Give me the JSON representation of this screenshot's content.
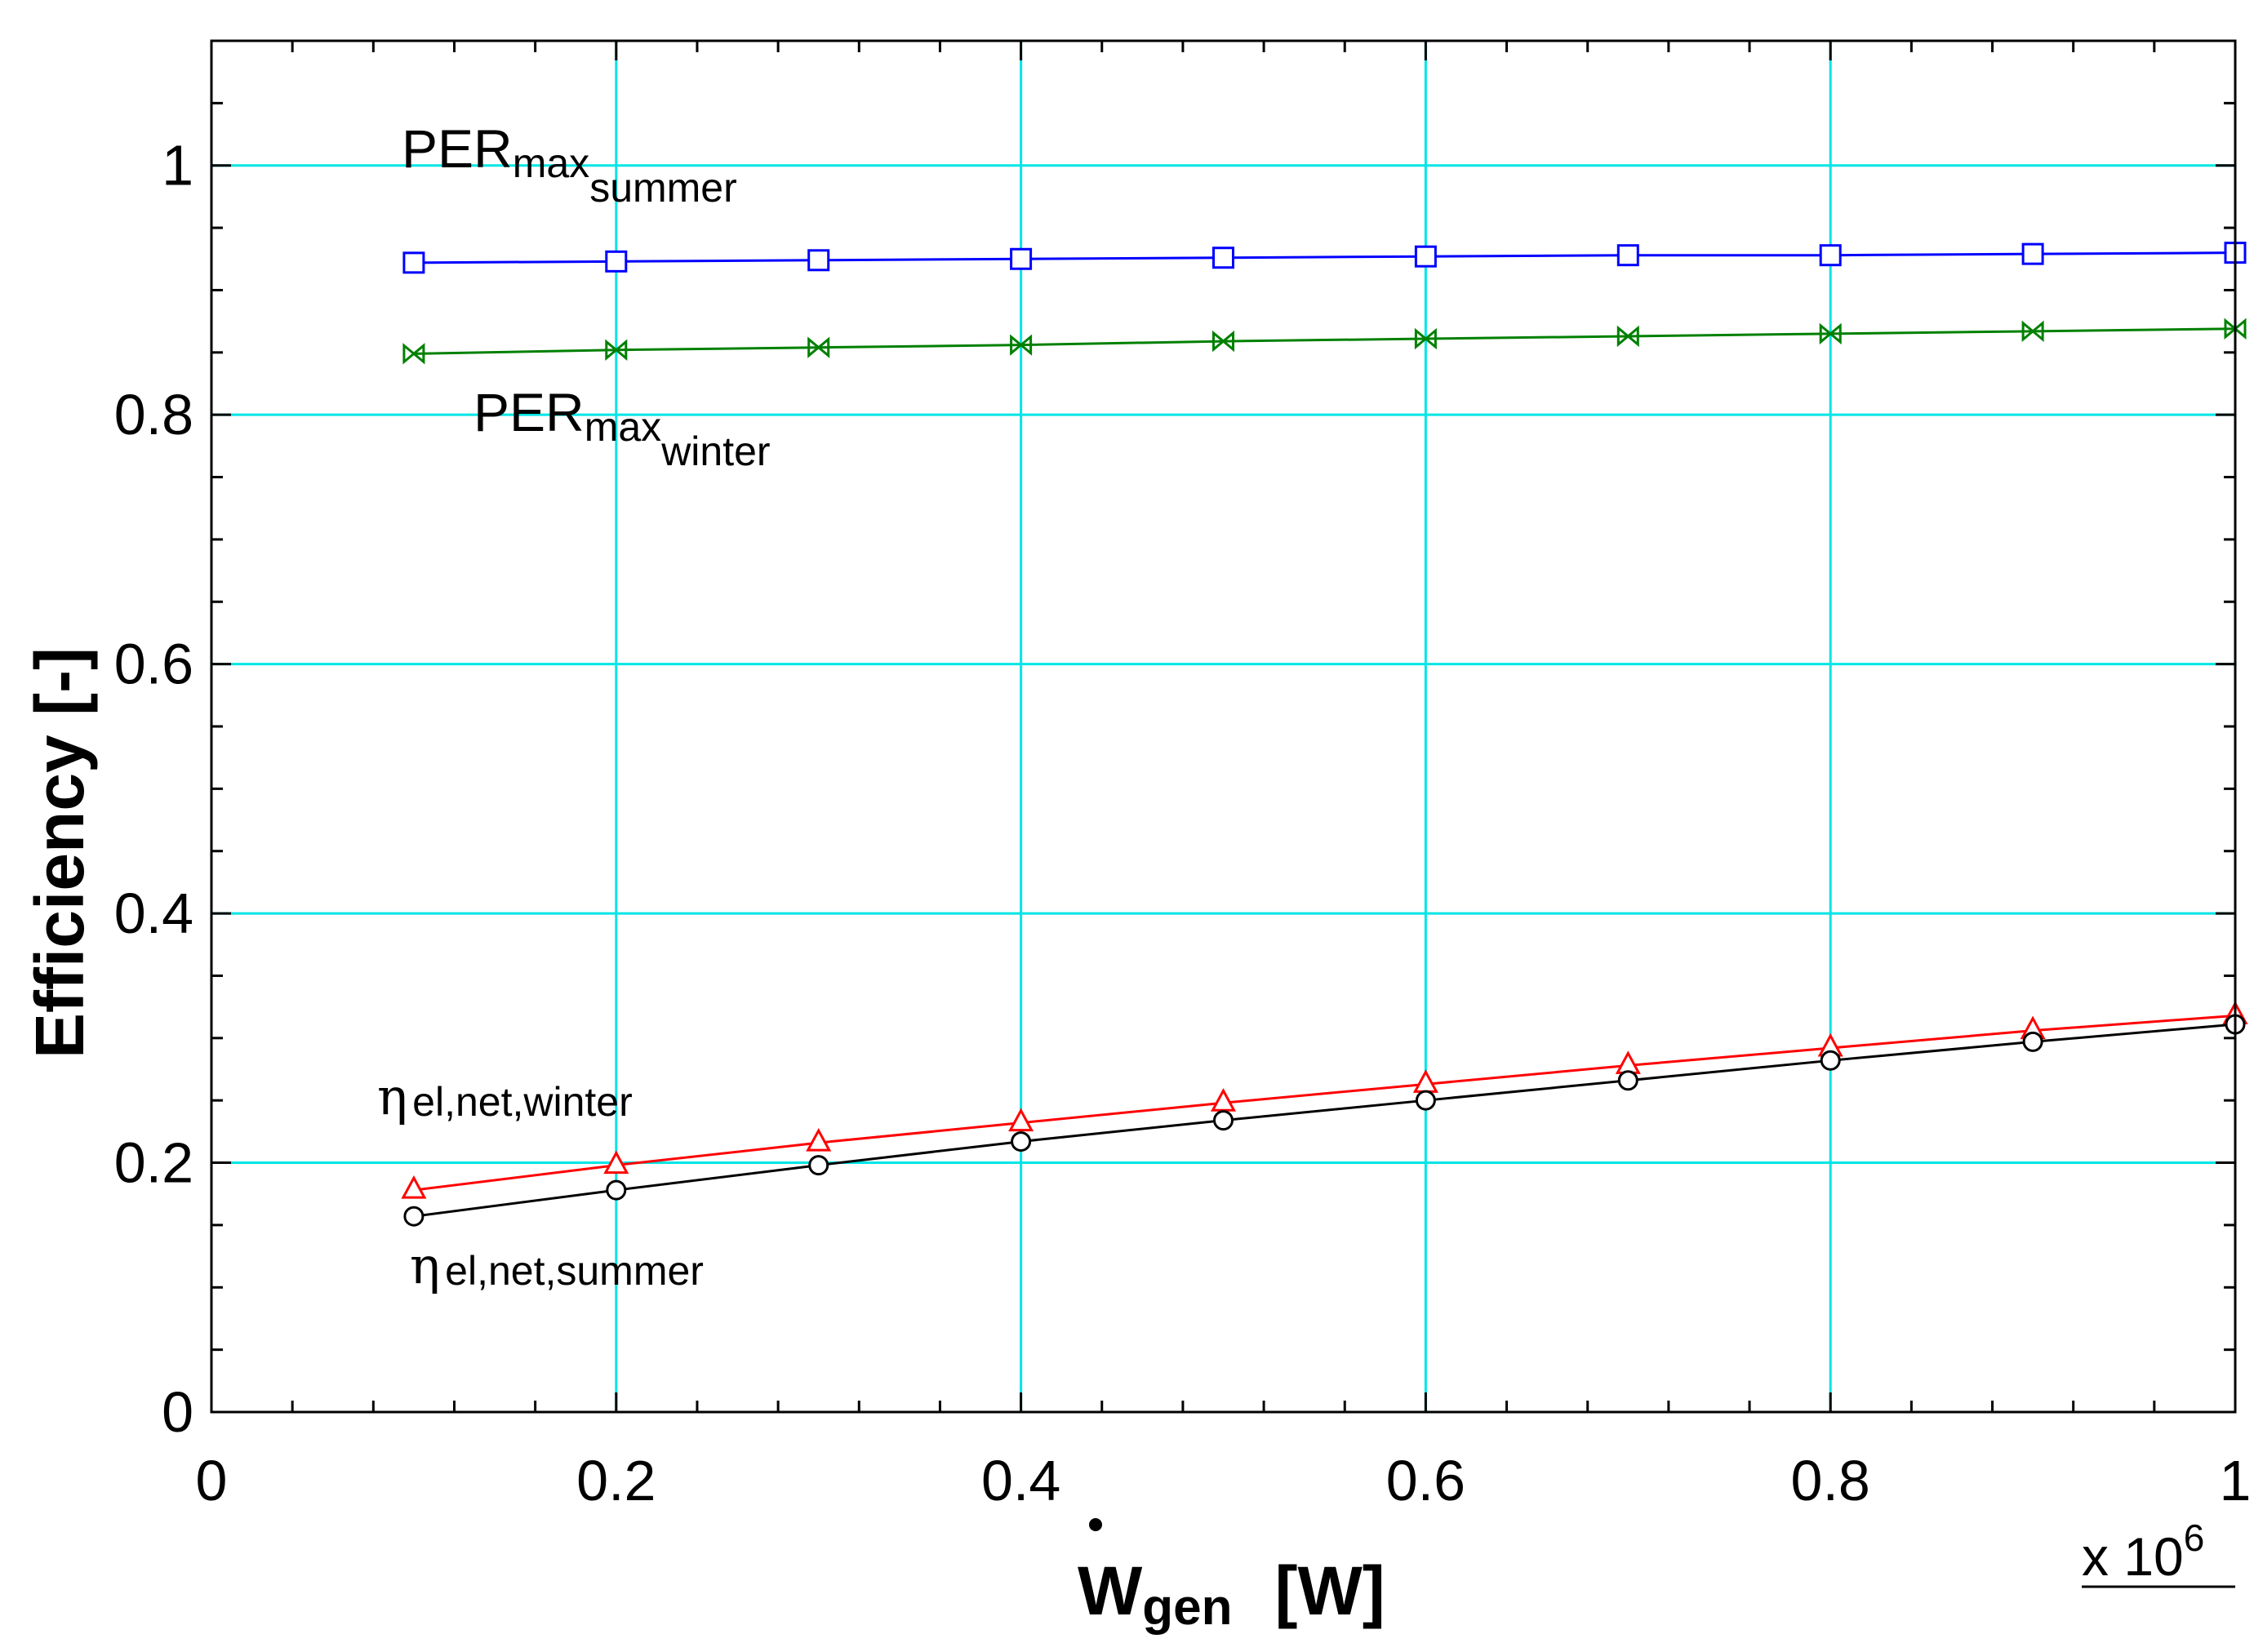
{
  "chart_data": {
    "type": "line",
    "title": "",
    "xlabel": {
      "symbol": "W",
      "subscript": "gen",
      "unit": "[W]"
    },
    "ylabel": "Efficiency [-]",
    "x_multiplier": {
      "prefix": "x 10",
      "exponent": "6"
    },
    "xlim": [
      0,
      1
    ],
    "ylim": [
      0,
      1.1
    ],
    "grid": true,
    "x_ticks": [
      0,
      0.2,
      0.4,
      0.6,
      0.8,
      1
    ],
    "x_tick_labels": [
      "0",
      "0.2",
      "0.4",
      "0.6",
      "0.8",
      "1"
    ],
    "y_ticks": [
      0,
      0.2,
      0.4,
      0.6,
      0.8,
      1
    ],
    "y_tick_labels": [
      "0",
      "0.2",
      "0.4",
      "0.6",
      "0.8",
      "1"
    ],
    "x": [
      0.1,
      0.2,
      0.3,
      0.4,
      0.5,
      0.6,
      0.7,
      0.8,
      0.9,
      1.0
    ],
    "series": [
      {
        "key": "per-summer",
        "base": "PER",
        "sub1": "max",
        "sub2": "summer",
        "color": "#0000ff",
        "marker": "square",
        "values": [
          0.922,
          0.923,
          0.924,
          0.925,
          0.926,
          0.927,
          0.928,
          0.928,
          0.929,
          0.93
        ]
      },
      {
        "key": "per-winter",
        "base": "PER",
        "sub1": "max",
        "sub2": "winter",
        "color": "#008000",
        "marker": "bowtie",
        "values": [
          0.849,
          0.852,
          0.854,
          0.856,
          0.859,
          0.861,
          0.863,
          0.865,
          0.867,
          0.869
        ]
      },
      {
        "key": "eta-winter",
        "base": "η",
        "sub1": "el,net,winter",
        "sub2": "",
        "color": "#ff0000",
        "marker": "triangle",
        "values": [
          0.178,
          0.198,
          0.216,
          0.232,
          0.248,
          0.263,
          0.278,
          0.292,
          0.306,
          0.318
        ]
      },
      {
        "key": "eta-summer",
        "base": "η",
        "sub1": "el,net,summer",
        "sub2": "",
        "color": "#000000",
        "marker": "circle",
        "values": [
          0.157,
          0.178,
          0.198,
          0.217,
          0.234,
          0.25,
          0.266,
          0.282,
          0.297,
          0.311
        ]
      }
    ]
  },
  "colors": {
    "grid": "#00e5e5",
    "axis": "#000000",
    "background": "#ffffff"
  }
}
